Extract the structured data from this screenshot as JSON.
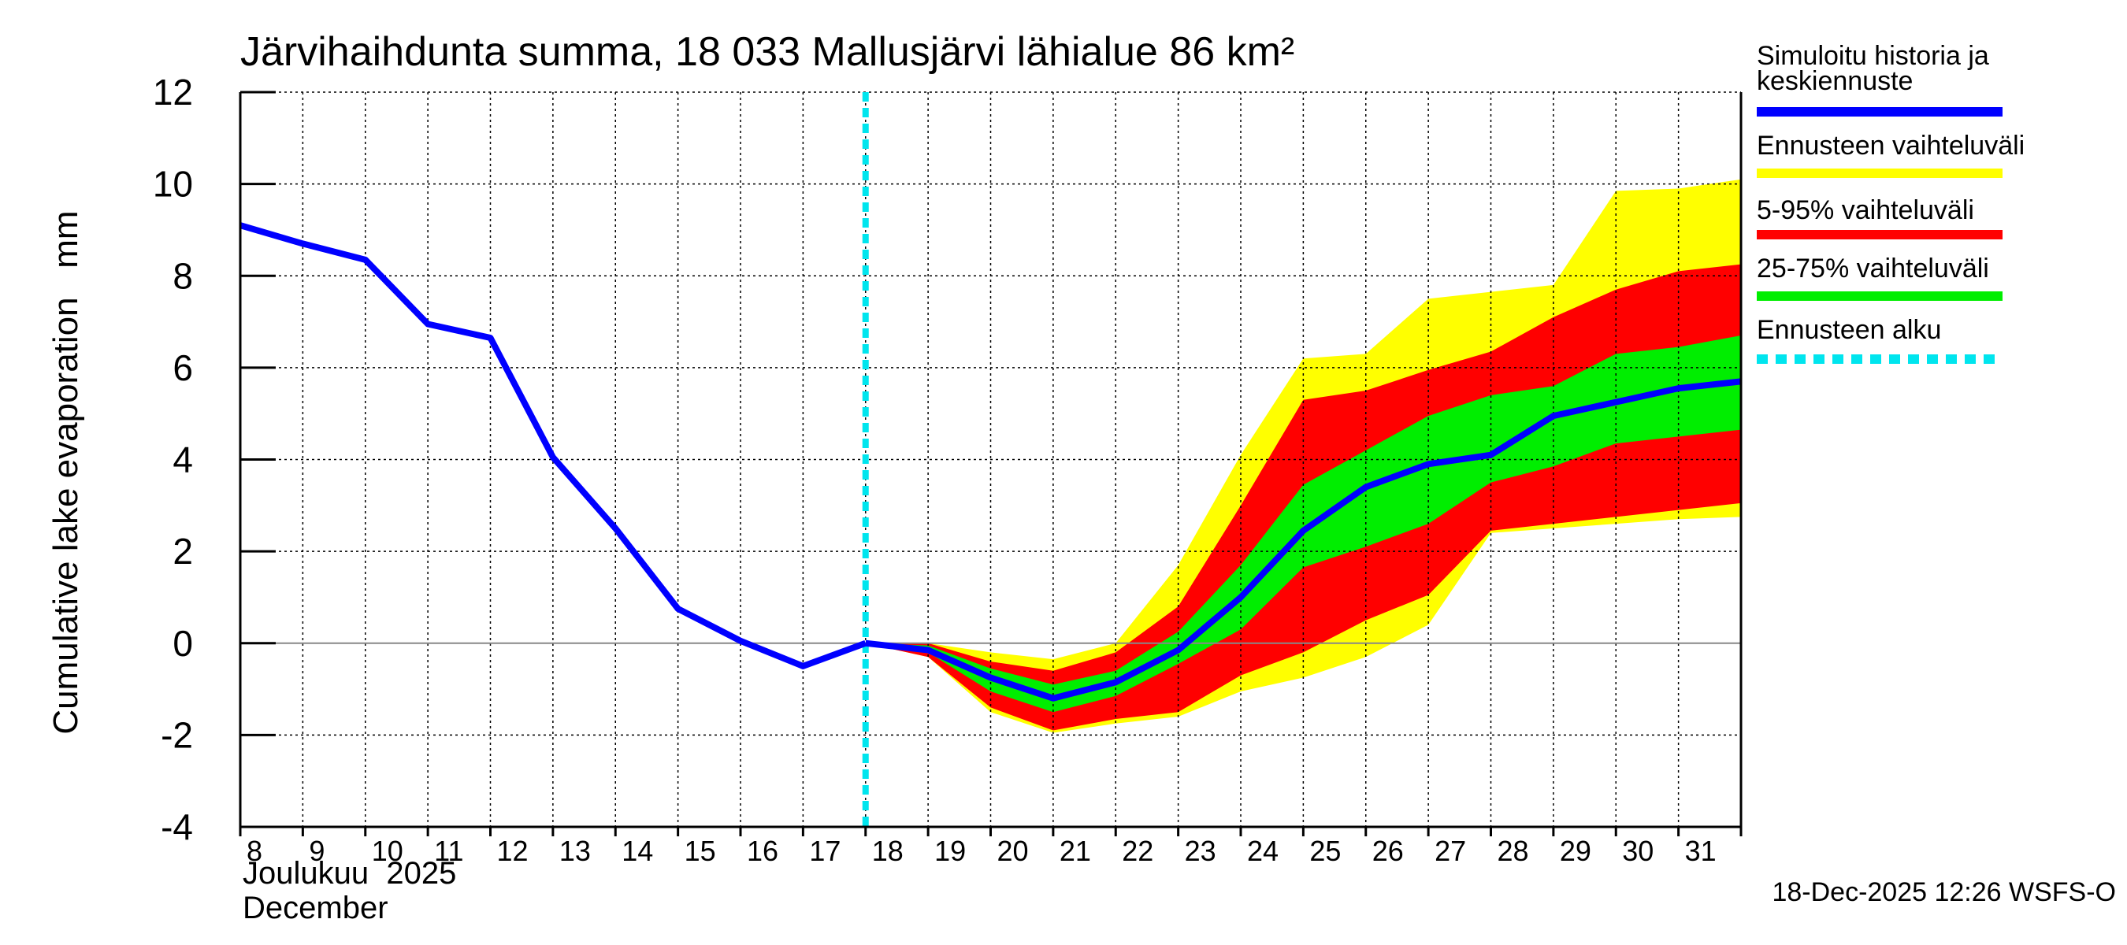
{
  "chart_data": {
    "type": "area",
    "title": "Järvihaihdunta summa, 18 033 Mallusjärvi lähialue 86 km²",
    "ylabel": "Cumulative lake evaporation   mm",
    "xlabel_line1": "Joulukuu  2025",
    "xlabel_line2": "December",
    "timestamp": "18-Dec-2025 12:26 WSFS-O",
    "ylim": [
      -4,
      12
    ],
    "yticks": [
      -4,
      -2,
      0,
      2,
      4,
      6,
      8,
      10,
      12
    ],
    "xlim": [
      8,
      32
    ],
    "xticks": [
      8,
      9,
      10,
      11,
      12,
      13,
      14,
      15,
      16,
      17,
      18,
      19,
      20,
      21,
      22,
      23,
      24,
      25,
      26,
      27,
      28,
      29,
      30,
      31
    ],
    "forecast_start": 18,
    "colors": {
      "history": "#0000ff",
      "band_outer": "#ffff00",
      "band_5_95": "#ff0000",
      "band_25_75": "#00ee00",
      "forecast_start": "#00e5ee",
      "grid": "#000000"
    },
    "history": {
      "x": [
        8,
        9,
        10,
        11,
        12,
        13,
        14,
        15,
        16,
        17,
        18
      ],
      "y": [
        9.1,
        8.7,
        8.35,
        6.95,
        6.65,
        4.05,
        2.5,
        0.75,
        0.05,
        -0.5,
        0.0
      ]
    },
    "forecast_x": [
      18,
      19,
      20,
      21,
      22,
      23,
      24,
      25,
      26,
      27,
      28,
      29,
      30,
      31,
      32
    ],
    "median": [
      0.0,
      -0.15,
      -0.75,
      -1.2,
      -0.85,
      -0.15,
      1.0,
      2.45,
      3.4,
      3.9,
      4.1,
      4.95,
      5.25,
      5.55,
      5.7
    ],
    "band_outer_upper": [
      0.0,
      0.0,
      -0.2,
      -0.35,
      0.0,
      1.7,
      4.1,
      6.2,
      6.3,
      7.5,
      7.65,
      7.8,
      9.85,
      9.9,
      10.1
    ],
    "band_outer_lower": [
      0.0,
      -0.3,
      -1.5,
      -1.95,
      -1.75,
      -1.6,
      -1.05,
      -0.75,
      -0.3,
      0.4,
      2.4,
      2.5,
      2.6,
      2.7,
      2.75
    ],
    "band_5_95_upper": [
      0.0,
      0.0,
      -0.4,
      -0.6,
      -0.2,
      0.8,
      3.0,
      5.3,
      5.5,
      5.95,
      6.35,
      7.1,
      7.7,
      8.1,
      8.25
    ],
    "band_5_95_lower": [
      0.0,
      -0.3,
      -1.4,
      -1.9,
      -1.65,
      -1.5,
      -0.7,
      -0.2,
      0.5,
      1.05,
      2.45,
      2.6,
      2.75,
      2.9,
      3.05
    ],
    "band_25_75_upper": [
      0.0,
      -0.05,
      -0.55,
      -0.9,
      -0.6,
      0.25,
      1.7,
      3.45,
      4.2,
      4.95,
      5.4,
      5.6,
      6.3,
      6.45,
      6.7
    ],
    "band_25_75_lower": [
      0.0,
      -0.2,
      -1.05,
      -1.5,
      -1.15,
      -0.45,
      0.3,
      1.65,
      2.1,
      2.6,
      3.5,
      3.85,
      4.35,
      4.5,
      4.65
    ],
    "legend": [
      {
        "label": "Simuloitu historia ja keskiennuste",
        "color": "#0000ff",
        "style": "solid"
      },
      {
        "label": "Ennusteen vaihteluväli",
        "color": "#ffff00",
        "style": "solid"
      },
      {
        "label": "5-95% vaihteluväli",
        "color": "#ff0000",
        "style": "solid"
      },
      {
        "label": "25-75% vaihteluväli",
        "color": "#00ee00",
        "style": "solid"
      },
      {
        "label": "Ennusteen alku",
        "color": "#00e5ee",
        "style": "dotted"
      }
    ]
  }
}
